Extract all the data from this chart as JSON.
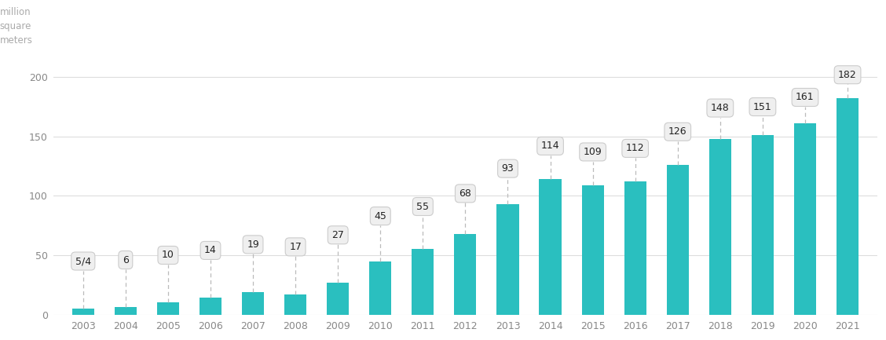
{
  "years": [
    2003,
    2004,
    2005,
    2006,
    2007,
    2008,
    2009,
    2010,
    2011,
    2012,
    2013,
    2014,
    2015,
    2016,
    2017,
    2018,
    2019,
    2020,
    2021
  ],
  "values": [
    5,
    6,
    10,
    14,
    19,
    17,
    27,
    45,
    55,
    68,
    93,
    114,
    109,
    112,
    126,
    148,
    151,
    161,
    182
  ],
  "labels": [
    "5/4",
    "6",
    "10",
    "14",
    "19",
    "17",
    "27",
    "45",
    "55",
    "68",
    "93",
    "114",
    "109",
    "112",
    "126",
    "148",
    "151",
    "161",
    "182"
  ],
  "bar_color": "#2ABFBF",
  "background_color": "#ffffff",
  "ylabel": "million\nsquare\nmeters",
  "yticks": [
    0,
    50,
    100,
    150,
    200
  ],
  "ylim": [
    0,
    240
  ],
  "grid_color": "#dddddd",
  "label_box_facecolor": "#efefef",
  "label_box_edgecolor": "#cccccc",
  "label_text_color": "#222222",
  "dashed_line_color": "#bbbbbb",
  "label_offsets": [
    40,
    40,
    40,
    40,
    40,
    40,
    40,
    38,
    36,
    34,
    30,
    28,
    28,
    28,
    28,
    26,
    24,
    22,
    20
  ]
}
